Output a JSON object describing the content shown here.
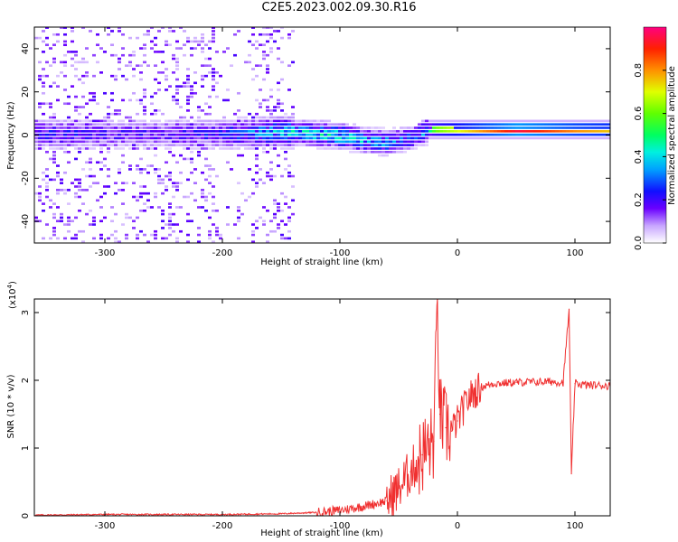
{
  "title": "C2E5.2023.002.09.30.R16",
  "chart_data": [
    {
      "type": "heatmap",
      "title": "C2E5.2023.002.09.30.R16",
      "xlabel": "Height of straight line (km)",
      "ylabel": "Frequency (Hz)",
      "xlim": [
        -360,
        130
      ],
      "ylim": [
        -50,
        50
      ],
      "xticks": [
        -300,
        -200,
        -100,
        0,
        100
      ],
      "xtick_labels": [
        "-300",
        "-200",
        "-100",
        "0",
        "100"
      ],
      "yticks": [
        -40,
        -20,
        0,
        20,
        40
      ],
      "ytick_labels": [
        "-40",
        "-20",
        "0",
        "20",
        "40"
      ],
      "colorbar": {
        "label": "Normalized spectral amplitude",
        "range": [
          0.0,
          1.0
        ],
        "ticks": [
          0.0,
          0.2,
          0.4,
          0.6,
          0.8
        ],
        "tick_labels": [
          "0.0",
          "0.2",
          "0.4",
          "0.6",
          "0.8"
        ]
      },
      "ridge": {
        "x": [
          -360,
          -300,
          -250,
          -200,
          -150,
          -120,
          -100,
          -80,
          -60,
          -40,
          -30,
          -20,
          0,
          50,
          100,
          130
        ],
        "y": [
          0,
          0,
          0,
          0,
          1,
          0,
          -1,
          -3,
          -4,
          -2,
          1,
          2,
          1.5,
          1.5,
          1.5,
          1.5
        ],
        "peak_amplitude": [
          0.25,
          0.2,
          0.2,
          0.25,
          0.4,
          0.45,
          0.45,
          0.4,
          0.35,
          0.3,
          0.35,
          0.6,
          0.7,
          0.95,
          0.8,
          0.75
        ]
      }
    },
    {
      "type": "line",
      "xlabel": "Height of straight line (km)",
      "ylabel": "SNR (10 * v/v)",
      "y_scale_label": "(x10",
      "y_scale_exponent": "4",
      "y_scale_close": ")",
      "xlim": [
        -360,
        130
      ],
      "ylim": [
        0,
        3.2
      ],
      "xticks": [
        -300,
        -200,
        -100,
        0,
        100
      ],
      "xtick_labels": [
        "-300",
        "-200",
        "-100",
        "0",
        "100"
      ],
      "yticks": [
        0,
        1,
        2,
        3
      ],
      "ytick_labels": [
        "0",
        "1",
        "2",
        "3"
      ],
      "series": [
        {
          "name": "SNR",
          "color": "#f03030",
          "x": [
            -360,
            -300,
            -250,
            -200,
            -150,
            -120,
            -100,
            -80,
            -60,
            -50,
            -40,
            -30,
            -20,
            -17,
            -15,
            -10,
            -5,
            0,
            10,
            20,
            30,
            50,
            80,
            90,
            95,
            97,
            100,
            110,
            130
          ],
          "y": [
            0.01,
            0.02,
            0.02,
            0.02,
            0.03,
            0.05,
            0.08,
            0.14,
            0.22,
            0.4,
            0.65,
            0.9,
            1.1,
            3.2,
            1.5,
            1.3,
            1.25,
            1.4,
            1.75,
            1.9,
            1.95,
            1.97,
            1.98,
            1.97,
            3.05,
            0.62,
            1.95,
            1.93,
            1.92
          ]
        }
      ]
    }
  ]
}
